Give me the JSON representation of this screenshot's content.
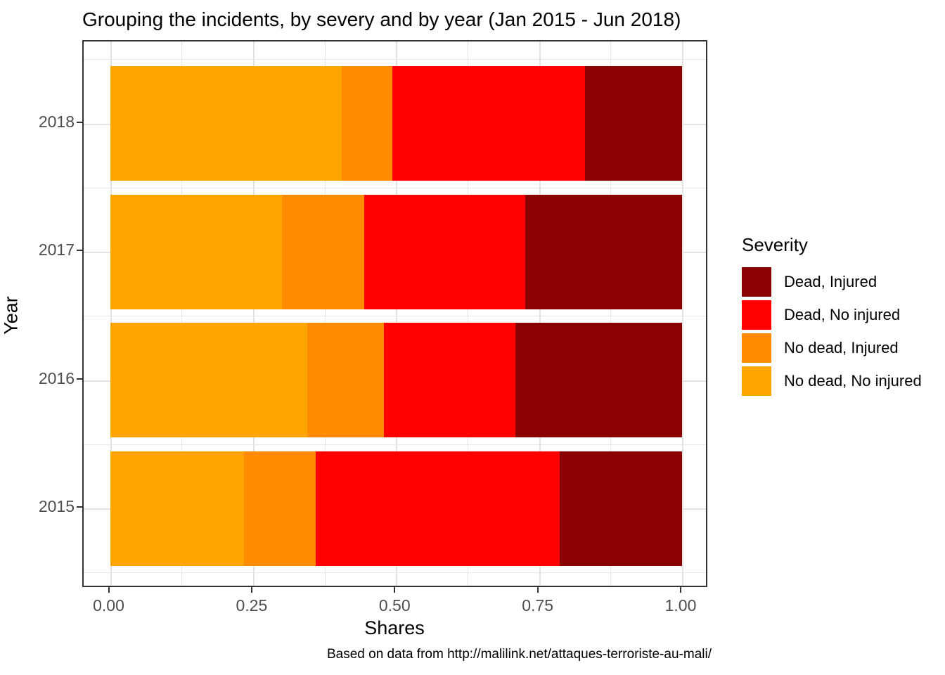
{
  "title": "Grouping the incidents, by severy and by year (Jan 2015 - Jun 2018)",
  "caption": "Based on data from http://malilink.net/attaques-terroriste-au-mali/",
  "legend": {
    "title": "Severity",
    "items": [
      {
        "label": "Dead, Injured",
        "color": "#8B0000"
      },
      {
        "label": "Dead, No injured",
        "color": "#FF0000"
      },
      {
        "label": "No dead, Injured",
        "color": "#FF8C00"
      },
      {
        "label": "No dead, No injured",
        "color": "#FFA500"
      }
    ]
  },
  "axes": {
    "x_label": "Shares",
    "y_label": "Year",
    "x_ticks": [
      {
        "label": "0.00",
        "value": 0.0
      },
      {
        "label": "0.25",
        "value": 0.25
      },
      {
        "label": "0.50",
        "value": 0.5
      },
      {
        "label": "0.75",
        "value": 0.75
      },
      {
        "label": "1.00",
        "value": 1.0
      }
    ],
    "x_minor_step": 0.125
  },
  "chart_data": {
    "type": "bar",
    "orientation": "horizontal",
    "stacked": true,
    "normalized": true,
    "title": "Grouping the incidents, by severy and by year (Jan 2015 - Jun 2018)",
    "xlabel": "Shares",
    "ylabel": "Year",
    "xlim": [
      0,
      1
    ],
    "grid": true,
    "legend_title": "Severity",
    "legend_position": "right",
    "caption": "Based on data from http://malilink.net/attaques-terroriste-au-mali/",
    "categories": [
      "2018",
      "2017",
      "2016",
      "2015"
    ],
    "series": [
      {
        "name": "No dead, No injured",
        "color": "#FFA500",
        "values": [
          0.405,
          0.301,
          0.345,
          0.234
        ]
      },
      {
        "name": "No dead, Injured",
        "color": "#FF8C00",
        "values": [
          0.089,
          0.143,
          0.134,
          0.126
        ]
      },
      {
        "name": "Dead, No injured",
        "color": "#FF0000",
        "values": [
          0.336,
          0.282,
          0.23,
          0.426
        ]
      },
      {
        "name": "Dead, Injured",
        "color": "#8B0000",
        "values": [
          0.17,
          0.274,
          0.291,
          0.214
        ]
      }
    ]
  },
  "colors": {
    "panel_border": "#333333",
    "grid": "#e6e6e6",
    "tick_text": "#4d4d4d",
    "text": "#000000",
    "background": "#ffffff"
  }
}
